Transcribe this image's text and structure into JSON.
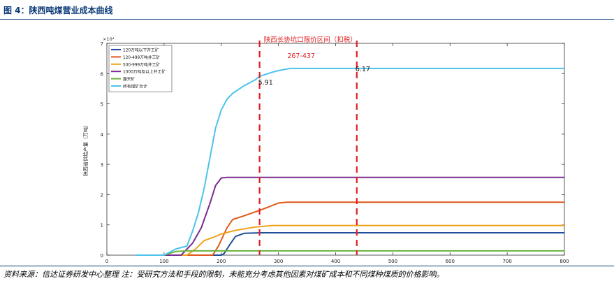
{
  "figure": {
    "title": "图 4：陕西吨煤营业成本曲线",
    "source": "资料来源：信达证券研发中心整理 注：受研究方法和手段的限制，未能充分考虑其他因素对煤矿成本和不同煤种煤质的价格影响。"
  },
  "colors": {
    "title": "#0b3a78",
    "band": "#e02020",
    "annotation": "#e02020"
  },
  "chart_data": {
    "type": "line",
    "title": "",
    "xlabel": "",
    "ylabel": "陕西省供给产量（万吨）",
    "y_exponent_label": "×10⁴",
    "xlim": [
      0,
      800
    ],
    "ylim": [
      0,
      7
    ],
    "x_ticks": [
      "0",
      "100",
      "200",
      "300",
      "400",
      "500",
      "600",
      "700",
      "800"
    ],
    "y_ticks": [
      "0",
      "1",
      "2",
      "3",
      "4",
      "5",
      "6",
      "7"
    ],
    "legend_position": "top-left",
    "band": {
      "label": "陕西长协坑口限价区间（扣税）",
      "range_label": "267-437",
      "x_start": 267,
      "x_end": 437
    },
    "point_labels": [
      {
        "text": "5.91",
        "x": 267,
        "y": 5.91
      },
      {
        "text": "6.17",
        "x": 437,
        "y": 6.17
      }
    ],
    "series": [
      {
        "name": "120万吨以下井工矿",
        "color": "#1f4e9a",
        "points": [
          [
            160,
            0
          ],
          [
            200,
            0
          ],
          [
            205,
            0.05
          ],
          [
            215,
            0.35
          ],
          [
            225,
            0.62
          ],
          [
            240,
            0.72
          ],
          [
            270,
            0.74
          ],
          [
            800,
            0.74
          ]
        ]
      },
      {
        "name": "120-499万吨井工矿",
        "color": "#e0571a",
        "points": [
          [
            100,
            0
          ],
          [
            185,
            0
          ],
          [
            195,
            0.3
          ],
          [
            210,
            0.9
          ],
          [
            220,
            1.18
          ],
          [
            240,
            1.3
          ],
          [
            270,
            1.5
          ],
          [
            300,
            1.72
          ],
          [
            315,
            1.75
          ],
          [
            800,
            1.75
          ]
        ]
      },
      {
        "name": "500-999万吨井工矿",
        "color": "#f0a21c",
        "points": [
          [
            100,
            0
          ],
          [
            140,
            0
          ],
          [
            155,
            0.2
          ],
          [
            170,
            0.48
          ],
          [
            185,
            0.58
          ],
          [
            200,
            0.7
          ],
          [
            225,
            0.82
          ],
          [
            260,
            0.93
          ],
          [
            290,
            0.98
          ],
          [
            800,
            0.98
          ]
        ]
      },
      {
        "name": "1000万吨及以上井工矿",
        "color": "#7b2c8e",
        "points": [
          [
            100,
            0
          ],
          [
            130,
            0
          ],
          [
            150,
            0.4
          ],
          [
            165,
            0.9
          ],
          [
            180,
            1.7
          ],
          [
            190,
            2.3
          ],
          [
            200,
            2.55
          ],
          [
            210,
            2.57
          ],
          [
            800,
            2.57
          ]
        ]
      },
      {
        "name": "露天矿",
        "color": "#6ab23a",
        "points": [
          [
            100,
            0
          ],
          [
            120,
            0.12
          ],
          [
            140,
            0.14
          ],
          [
            800,
            0.14
          ]
        ]
      },
      {
        "name": "所有煤矿合计",
        "color": "#4cc3ea",
        "points": [
          [
            50,
            0
          ],
          [
            100,
            0
          ],
          [
            110,
            0.1
          ],
          [
            120,
            0.2
          ],
          [
            140,
            0.3
          ],
          [
            150,
            0.8
          ],
          [
            160,
            1.4
          ],
          [
            170,
            2.2
          ],
          [
            180,
            3.2
          ],
          [
            190,
            4.2
          ],
          [
            200,
            4.8
          ],
          [
            210,
            5.15
          ],
          [
            220,
            5.35
          ],
          [
            240,
            5.6
          ],
          [
            260,
            5.8
          ],
          [
            267,
            5.91
          ],
          [
            290,
            6.05
          ],
          [
            300,
            6.1
          ],
          [
            320,
            6.17
          ],
          [
            437,
            6.17
          ],
          [
            800,
            6.17
          ]
        ]
      }
    ]
  }
}
